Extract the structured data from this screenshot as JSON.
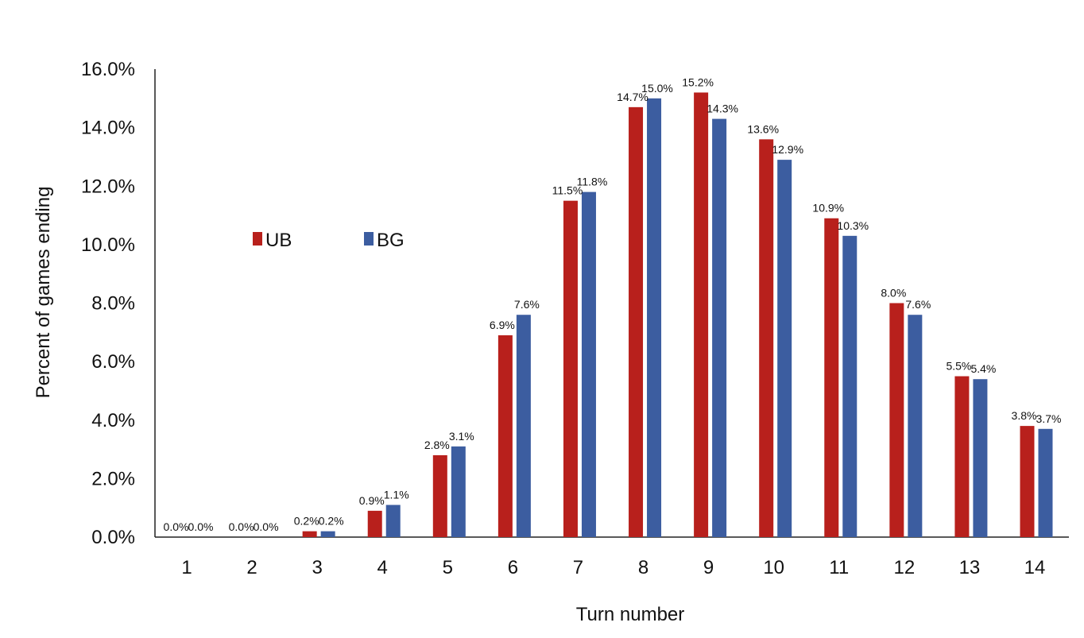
{
  "chart_data": {
    "type": "bar",
    "title": "",
    "xlabel": "Turn number",
    "ylabel": "Percent of games ending",
    "ylim": [
      0,
      16
    ],
    "yticks": [
      "0.0%",
      "2.0%",
      "4.0%",
      "6.0%",
      "8.0%",
      "10.0%",
      "12.0%",
      "14.0%",
      "16.0%"
    ],
    "categories": [
      "1",
      "2",
      "3",
      "4",
      "5",
      "6",
      "7",
      "8",
      "9",
      "10",
      "11",
      "12",
      "13",
      "14"
    ],
    "legend_position": "upper-left",
    "grid": false,
    "series": [
      {
        "name": "UB",
        "color": "#b8201c",
        "values": [
          0.0,
          0.0,
          0.2,
          0.9,
          2.8,
          6.9,
          11.5,
          14.7,
          15.2,
          13.6,
          10.9,
          8.0,
          5.5,
          3.8
        ],
        "labels": [
          "0.0%",
          "0.0%",
          "0.2%",
          "0.9%",
          "2.8%",
          "6.9%",
          "11.5%",
          "14.7%",
          "15.2%",
          "13.6%",
          "10.9%",
          "8.0%",
          "5.5%",
          "3.8%"
        ]
      },
      {
        "name": "BG",
        "color": "#3c5da0",
        "values": [
          0.0,
          0.0,
          0.2,
          1.1,
          3.1,
          7.6,
          11.8,
          15.0,
          14.3,
          12.9,
          10.3,
          7.6,
          5.4,
          3.7
        ],
        "labels": [
          "0.0%",
          "0.0%",
          "0.2%",
          "1.1%",
          "3.1%",
          "7.6%",
          "11.8%",
          "15.0%",
          "14.3%",
          "12.9%",
          "10.3%",
          "7.6%",
          "5.4%",
          "3.7%"
        ]
      }
    ]
  }
}
